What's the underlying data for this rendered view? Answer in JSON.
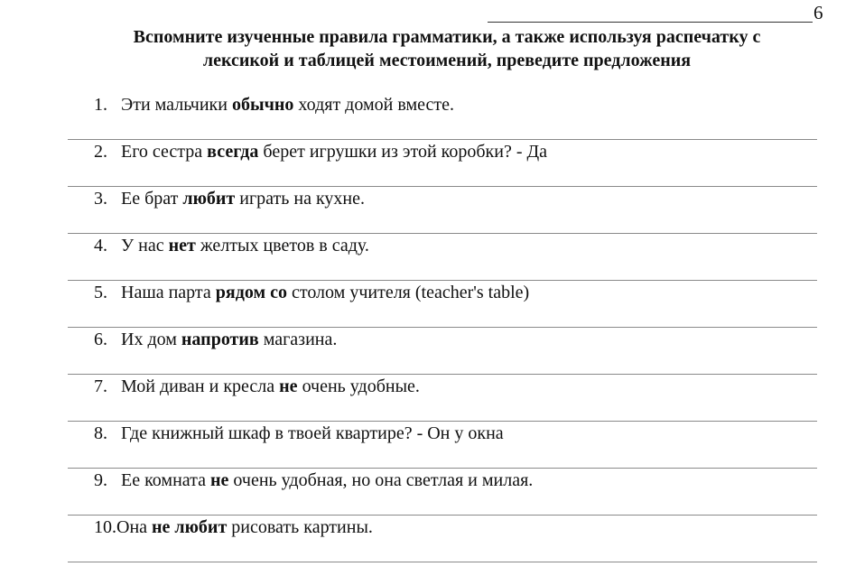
{
  "page_number": "6",
  "title_line1": "Вспомните изученные правила грамматики, а также используя распечатку с",
  "title_line2": "лексикой и таблицей местоимений, преведите предложения",
  "items": [
    {
      "num": "1.",
      "parts": [
        {
          "t": "Эти мальчики ",
          "b": false
        },
        {
          "t": "обычно",
          "b": true
        },
        {
          "t": " ходят домой вместе.",
          "b": false
        }
      ]
    },
    {
      "num": "2.",
      "parts": [
        {
          "t": "Его сестра ",
          "b": false
        },
        {
          "t": "всегда",
          "b": true
        },
        {
          "t": " берет игрушки из этой коробки? - Да",
          "b": false
        }
      ]
    },
    {
      "num": "3.",
      "parts": [
        {
          "t": "Ее брат ",
          "b": false
        },
        {
          "t": "любит",
          "b": true
        },
        {
          "t": " играть на кухне.",
          "b": false
        }
      ]
    },
    {
      "num": "4.",
      "parts": [
        {
          "t": "У нас ",
          "b": false
        },
        {
          "t": "нет",
          "b": true
        },
        {
          "t": " желтых цветов в саду.",
          "b": false
        }
      ]
    },
    {
      "num": "5.",
      "parts": [
        {
          "t": "Наша парта ",
          "b": false
        },
        {
          "t": "рядом со",
          "b": true
        },
        {
          "t": " столом учителя (teacher's table)",
          "b": false
        }
      ]
    },
    {
      "num": "6.",
      "parts": [
        {
          "t": "Их дом ",
          "b": false
        },
        {
          "t": "напротив",
          "b": true
        },
        {
          "t": " магазина.",
          "b": false
        }
      ]
    },
    {
      "num": "7.",
      "parts": [
        {
          "t": "Мой диван и кресла ",
          "b": false
        },
        {
          "t": "не",
          "b": true
        },
        {
          "t": " очень удобные.",
          "b": false
        }
      ]
    },
    {
      "num": "8.",
      "parts": [
        {
          "t": "Где книжный шкаф в твоей квартире? - Он у окна",
          "b": false
        }
      ]
    },
    {
      "num": "9.",
      "parts": [
        {
          "t": "Ее комната ",
          "b": false
        },
        {
          "t": "не",
          "b": true
        },
        {
          "t": " очень удобная, но она светлая и милая.",
          "b": false
        }
      ]
    },
    {
      "num": "10.",
      "parts": [
        {
          "t": "Она ",
          "b": false
        },
        {
          "t": "не любит",
          "b": true
        },
        {
          "t": " рисовать картины.",
          "b": false
        }
      ]
    }
  ]
}
